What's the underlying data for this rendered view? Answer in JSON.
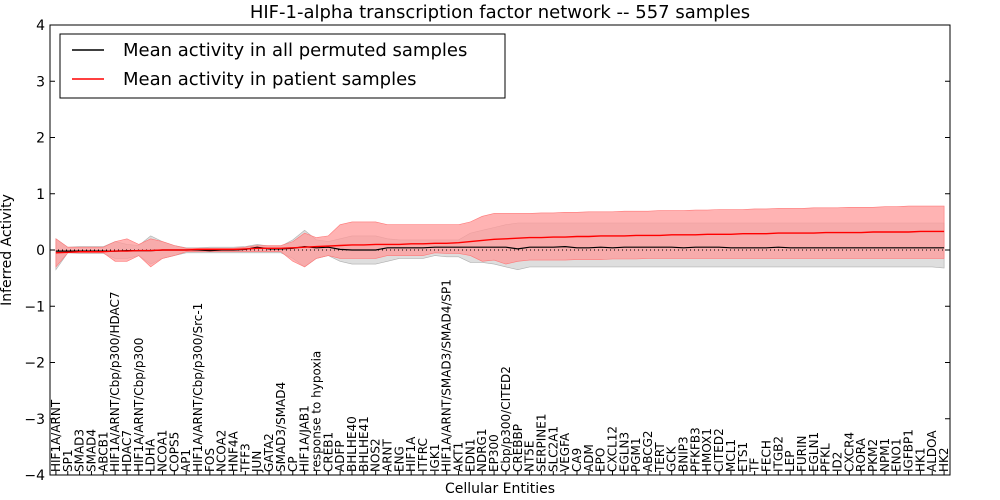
{
  "chart_data": {
    "type": "line",
    "title": "HIF-1-alpha transcription factor network -- 557 samples",
    "xlabel": "Cellular Entities",
    "ylabel": "Inferred Activity",
    "ylim": [
      -4,
      4
    ],
    "yticks": [
      -4,
      -3,
      -2,
      -1,
      0,
      1,
      2,
      3,
      4
    ],
    "ytick_labels": [
      "−4",
      "−3",
      "−2",
      "−1",
      "0",
      "1",
      "2",
      "3",
      "4"
    ],
    "legend": {
      "position": "top-left",
      "entries": [
        {
          "label": "Mean activity in all permuted samples",
          "color": "#000000"
        },
        {
          "label": "Mean activity in patient samples",
          "color": "#ff0000"
        }
      ]
    },
    "colors": {
      "patient": "#ff0000",
      "patient_band": "#ff9999",
      "permuted": "#000000",
      "permuted_band": "#c8c8c8"
    },
    "categories": [
      "HIF1A/ARNT",
      "SP1",
      "SMAD3",
      "SMAD4",
      "ABCB1",
      "HIF1A/ARNT/Cbp/p300/HDAC7",
      "HDAC7",
      "HIF1A/ARNT/Cbp/p300",
      "LDHA",
      "NCOA1",
      "COPS5",
      "AP1",
      "HIF1A/ARNT/Cbp/p300/Src-1",
      "FOS",
      "NCOA2",
      "HNF4A",
      "TFF3",
      "JUN",
      "GATA2",
      "SMAD3/SMAD4",
      "CP",
      "HIF1A/JAB1",
      "response to hypoxia",
      "CREB1",
      "ADFP",
      "BHLHE40",
      "BHLHE41",
      "NOS2",
      "ARNT",
      "ENG",
      "HIF1A",
      "ITFRC",
      "IGK1",
      "HIF1A/ARNT/SMAD3/SMAD4/SP1",
      "AKT1",
      "EDN1",
      "NDRG1",
      "EP300",
      "Cbp/p300/CITED2",
      "CREBBP",
      "NT5E",
      "SERPINE1",
      "SLC2A1",
      "VEGFA",
      "CA9",
      "ADM",
      "EPO",
      "CXCL12",
      "EGLN3",
      "PGM1",
      "ABCG2",
      "TERT",
      "GCK",
      "BNIP3",
      "PFKFB3",
      "HMOX1",
      "CITED2",
      "MCL1",
      "ETS1",
      "TF",
      "FECH",
      "ITGB2",
      "LEP",
      "FURIN",
      "EGLN1",
      "PFKL",
      "ID2",
      "CXCR4",
      "RORA",
      "PKM2",
      "NPM1",
      "ENO1",
      "IGFBP1",
      "HK1",
      "ALDOA",
      "HK2"
    ],
    "series": [
      {
        "name": "Mean activity in all permuted samples",
        "values": [
          -0.02,
          -0.02,
          -0.02,
          -0.02,
          -0.02,
          -0.02,
          -0.01,
          -0.01,
          -0.01,
          0.0,
          0.0,
          0.0,
          0.0,
          -0.01,
          0.0,
          0.0,
          0.01,
          0.05,
          0.02,
          0.02,
          0.03,
          0.06,
          0.04,
          0.05,
          0.01,
          0.0,
          0.0,
          0.0,
          0.04,
          0.04,
          0.04,
          0.04,
          0.05,
          0.05,
          0.05,
          0.05,
          0.05,
          0.05,
          0.05,
          0.02,
          0.05,
          0.05,
          0.05,
          0.06,
          0.04,
          0.04,
          0.05,
          0.04,
          0.05,
          0.05,
          0.05,
          0.05,
          0.05,
          0.04,
          0.05,
          0.05,
          0.05,
          0.04,
          0.04,
          0.04,
          0.04,
          0.05,
          0.04,
          0.04,
          0.04,
          0.04,
          0.04,
          0.04,
          0.04,
          0.04,
          0.04,
          0.04,
          0.04,
          0.04,
          0.04,
          0.04
        ],
        "band_low": [
          -0.35,
          -0.05,
          -0.06,
          -0.06,
          -0.06,
          -0.15,
          -0.15,
          -0.1,
          -0.25,
          -0.15,
          -0.1,
          -0.05,
          -0.05,
          -0.05,
          -0.05,
          -0.05,
          -0.05,
          -0.05,
          -0.05,
          -0.05,
          -0.15,
          -0.3,
          -0.15,
          -0.1,
          -0.2,
          -0.25,
          -0.25,
          -0.25,
          -0.2,
          -0.15,
          -0.15,
          -0.15,
          -0.1,
          -0.12,
          -0.12,
          -0.22,
          -0.22,
          -0.25,
          -0.3,
          -0.35,
          -0.3,
          -0.3,
          -0.3,
          -0.3,
          -0.3,
          -0.3,
          -0.3,
          -0.3,
          -0.3,
          -0.3,
          -0.3,
          -0.3,
          -0.3,
          -0.3,
          -0.3,
          -0.3,
          -0.3,
          -0.3,
          -0.3,
          -0.3,
          -0.3,
          -0.3,
          -0.3,
          -0.3,
          -0.3,
          -0.3,
          -0.3,
          -0.3,
          -0.3,
          -0.3,
          -0.3,
          -0.3,
          -0.3,
          -0.3,
          -0.3,
          -0.32
        ],
        "band_high": [
          0.2,
          0.05,
          0.06,
          0.06,
          0.06,
          0.15,
          0.1,
          0.08,
          0.25,
          0.15,
          0.08,
          0.04,
          0.04,
          0.05,
          0.05,
          0.05,
          0.06,
          0.1,
          0.07,
          0.07,
          0.18,
          0.35,
          0.18,
          0.15,
          0.2,
          0.25,
          0.25,
          0.25,
          0.2,
          0.18,
          0.18,
          0.18,
          0.18,
          0.18,
          0.18,
          0.3,
          0.35,
          0.4,
          0.45,
          0.48,
          0.48,
          0.48,
          0.48,
          0.48,
          0.48,
          0.48,
          0.48,
          0.48,
          0.48,
          0.48,
          0.48,
          0.48,
          0.48,
          0.48,
          0.48,
          0.48,
          0.48,
          0.48,
          0.48,
          0.48,
          0.48,
          0.48,
          0.48,
          0.48,
          0.48,
          0.48,
          0.48,
          0.48,
          0.48,
          0.48,
          0.48,
          0.48,
          0.48,
          0.48,
          0.48,
          0.48
        ]
      },
      {
        "name": "Mean activity in patient samples",
        "values": [
          -0.05,
          -0.04,
          -0.03,
          -0.03,
          -0.03,
          -0.02,
          -0.02,
          -0.01,
          -0.01,
          0.0,
          0.0,
          0.0,
          0.01,
          0.01,
          0.01,
          0.01,
          0.02,
          0.03,
          0.03,
          0.03,
          0.04,
          0.05,
          0.06,
          0.07,
          0.08,
          0.09,
          0.09,
          0.1,
          0.1,
          0.1,
          0.11,
          0.11,
          0.12,
          0.12,
          0.13,
          0.15,
          0.17,
          0.19,
          0.2,
          0.21,
          0.22,
          0.22,
          0.23,
          0.23,
          0.24,
          0.24,
          0.25,
          0.25,
          0.25,
          0.26,
          0.26,
          0.26,
          0.27,
          0.27,
          0.27,
          0.28,
          0.28,
          0.28,
          0.29,
          0.29,
          0.29,
          0.3,
          0.3,
          0.3,
          0.3,
          0.31,
          0.31,
          0.31,
          0.31,
          0.32,
          0.32,
          0.32,
          0.32,
          0.33,
          0.33,
          0.33
        ],
        "band_low": [
          -0.3,
          -0.05,
          -0.05,
          -0.05,
          -0.05,
          -0.2,
          -0.2,
          -0.1,
          -0.3,
          -0.15,
          -0.1,
          -0.03,
          -0.03,
          -0.03,
          -0.03,
          -0.03,
          -0.03,
          -0.03,
          -0.03,
          -0.03,
          -0.2,
          -0.3,
          -0.15,
          -0.1,
          -0.15,
          -0.15,
          -0.15,
          -0.15,
          -0.1,
          -0.1,
          -0.1,
          -0.1,
          -0.05,
          -0.06,
          -0.06,
          -0.1,
          -0.2,
          -0.18,
          -0.25,
          -0.2,
          -0.18,
          -0.18,
          -0.18,
          -0.18,
          -0.17,
          -0.17,
          -0.17,
          -0.16,
          -0.16,
          -0.16,
          -0.15,
          -0.15,
          -0.15,
          -0.15,
          -0.15,
          -0.15,
          -0.15,
          -0.15,
          -0.15,
          -0.15,
          -0.15,
          -0.15,
          -0.15,
          -0.15,
          -0.15,
          -0.15,
          -0.15,
          -0.15,
          -0.15,
          -0.15,
          -0.15,
          -0.15,
          -0.15,
          -0.15,
          -0.15,
          -0.15
        ],
        "band_high": [
          0.2,
          0.05,
          0.05,
          0.05,
          0.05,
          0.15,
          0.2,
          0.1,
          0.2,
          0.15,
          0.08,
          0.03,
          0.03,
          0.03,
          0.03,
          0.03,
          0.05,
          0.08,
          0.08,
          0.08,
          0.15,
          0.3,
          0.22,
          0.25,
          0.45,
          0.5,
          0.5,
          0.5,
          0.45,
          0.45,
          0.45,
          0.45,
          0.45,
          0.45,
          0.45,
          0.5,
          0.6,
          0.65,
          0.65,
          0.65,
          0.65,
          0.66,
          0.66,
          0.67,
          0.67,
          0.68,
          0.68,
          0.68,
          0.69,
          0.69,
          0.69,
          0.7,
          0.7,
          0.7,
          0.71,
          0.71,
          0.72,
          0.72,
          0.72,
          0.73,
          0.73,
          0.74,
          0.74,
          0.74,
          0.75,
          0.75,
          0.75,
          0.76,
          0.76,
          0.76,
          0.77,
          0.77,
          0.78,
          0.78,
          0.78,
          0.78
        ]
      }
    ]
  }
}
